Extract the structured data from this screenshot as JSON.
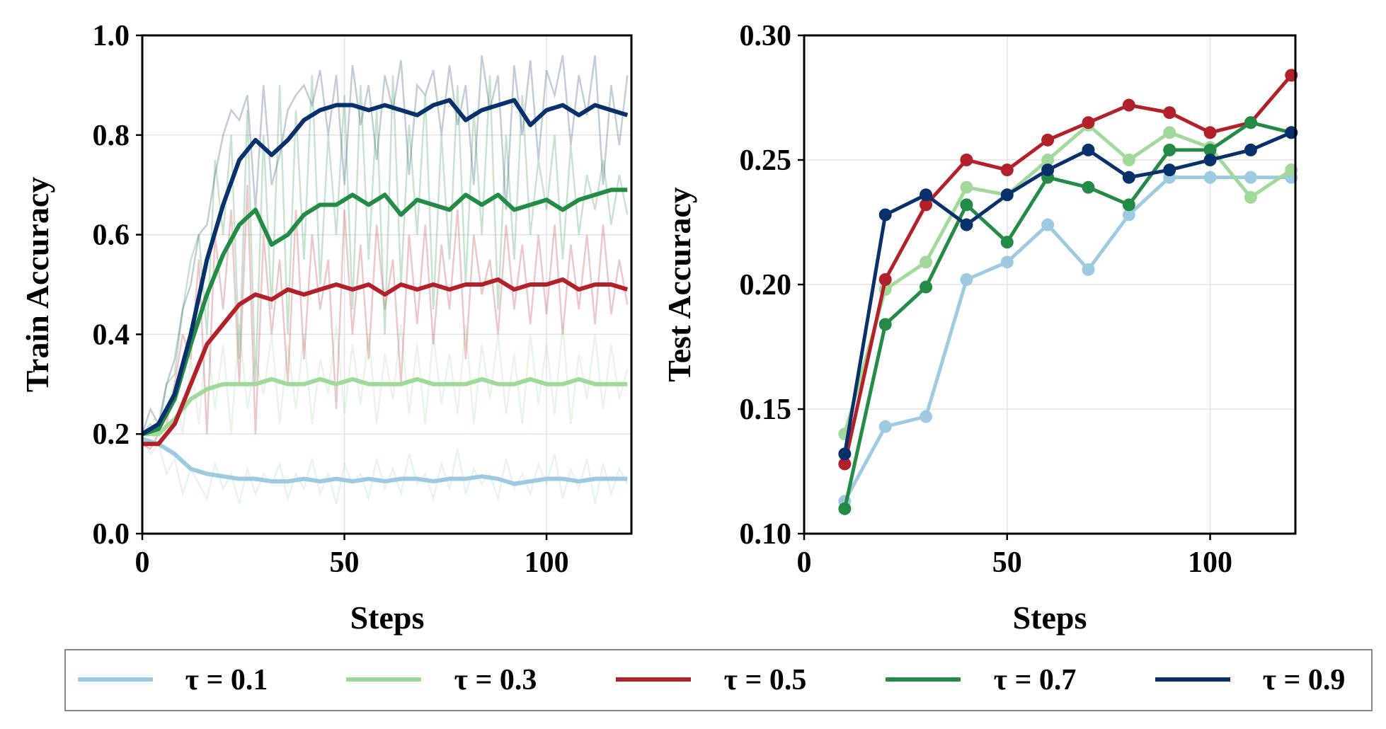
{
  "chart_data": [
    {
      "type": "line",
      "xlabel": "Steps",
      "ylabel": "Train Accuracy",
      "xlim": [
        0,
        121
      ],
      "ylim": [
        0.0,
        1.0
      ],
      "xticks": [
        "0",
        "50",
        "100"
      ],
      "yticks": [
        "0.0",
        "0.2",
        "0.4",
        "0.6",
        "0.8",
        "1.0"
      ],
      "grid": true,
      "smoothed_x": [
        0,
        4,
        8,
        12,
        16,
        20,
        24,
        28,
        32,
        36,
        40,
        44,
        48,
        52,
        56,
        60,
        64,
        68,
        72,
        76,
        80,
        84,
        88,
        92,
        96,
        100,
        104,
        108,
        112,
        116,
        120
      ],
      "raw_x_step": 2,
      "series": [
        {
          "name": "τ = 0.1",
          "color": "#9ecae1",
          "smoothed": [
            0.19,
            0.18,
            0.16,
            0.13,
            0.12,
            0.115,
            0.11,
            0.11,
            0.105,
            0.105,
            0.11,
            0.105,
            0.11,
            0.105,
            0.11,
            0.105,
            0.11,
            0.11,
            0.105,
            0.11,
            0.11,
            0.115,
            0.11,
            0.1,
            0.105,
            0.11,
            0.11,
            0.105,
            0.11,
            0.11,
            0.11
          ],
          "raw": [
            0.19,
            0.16,
            0.18,
            0.12,
            0.15,
            0.08,
            0.13,
            0.1,
            0.07,
            0.14,
            0.09,
            0.12,
            0.06,
            0.13,
            0.08,
            0.12,
            0.1,
            0.14,
            0.07,
            0.12,
            0.09,
            0.15,
            0.08,
            0.12,
            0.06,
            0.14,
            0.1,
            0.12,
            0.07,
            0.15,
            0.09,
            0.13,
            0.08,
            0.16,
            0.1,
            0.12,
            0.07,
            0.14,
            0.09,
            0.17,
            0.08,
            0.13,
            0.1,
            0.12,
            0.07,
            0.15,
            0.09,
            0.12,
            0.08,
            0.14,
            0.1,
            0.16,
            0.07,
            0.13,
            0.09,
            0.15,
            0.06,
            0.14,
            0.08,
            0.13,
            0.1
          ]
        },
        {
          "name": "τ = 0.3",
          "color": "#a1d99b",
          "smoothed": [
            0.2,
            0.2,
            0.23,
            0.27,
            0.29,
            0.3,
            0.3,
            0.3,
            0.31,
            0.3,
            0.3,
            0.31,
            0.3,
            0.31,
            0.3,
            0.3,
            0.3,
            0.31,
            0.3,
            0.3,
            0.3,
            0.31,
            0.3,
            0.3,
            0.31,
            0.3,
            0.3,
            0.31,
            0.3,
            0.3,
            0.3
          ],
          "raw": [
            0.2,
            0.21,
            0.18,
            0.25,
            0.3,
            0.2,
            0.35,
            0.22,
            0.4,
            0.25,
            0.38,
            0.2,
            0.42,
            0.25,
            0.35,
            0.28,
            0.4,
            0.22,
            0.38,
            0.25,
            0.4,
            0.22,
            0.35,
            0.28,
            0.42,
            0.24,
            0.38,
            0.26,
            0.4,
            0.22,
            0.36,
            0.27,
            0.42,
            0.24,
            0.38,
            0.22,
            0.4,
            0.26,
            0.36,
            0.24,
            0.42,
            0.22,
            0.38,
            0.27,
            0.4,
            0.24,
            0.36,
            0.22,
            0.4,
            0.26,
            0.38,
            0.24,
            0.42,
            0.22,
            0.36,
            0.27,
            0.4,
            0.25,
            0.38,
            0.27,
            0.33
          ]
        },
        {
          "name": "τ = 0.5",
          "color": "#b2202a",
          "smoothed": [
            0.18,
            0.18,
            0.22,
            0.3,
            0.38,
            0.42,
            0.46,
            0.48,
            0.47,
            0.49,
            0.48,
            0.49,
            0.5,
            0.49,
            0.5,
            0.48,
            0.5,
            0.49,
            0.5,
            0.49,
            0.5,
            0.5,
            0.51,
            0.49,
            0.5,
            0.5,
            0.51,
            0.49,
            0.5,
            0.5,
            0.49
          ],
          "raw": [
            0.18,
            0.17,
            0.2,
            0.22,
            0.3,
            0.4,
            0.35,
            0.55,
            0.2,
            0.6,
            0.45,
            0.65,
            0.3,
            0.7,
            0.2,
            0.6,
            0.4,
            0.55,
            0.3,
            0.65,
            0.35,
            0.6,
            0.45,
            0.55,
            0.25,
            0.65,
            0.4,
            0.58,
            0.35,
            0.62,
            0.45,
            0.55,
            0.3,
            0.6,
            0.42,
            0.62,
            0.38,
            0.58,
            0.45,
            0.65,
            0.35,
            0.6,
            0.48,
            0.55,
            0.4,
            0.62,
            0.45,
            0.58,
            0.42,
            0.6,
            0.44,
            0.62,
            0.4,
            0.58,
            0.45,
            0.6,
            0.42,
            0.62,
            0.44,
            0.55,
            0.46
          ]
        },
        {
          "name": "τ = 0.7",
          "color": "#238b45",
          "smoothed": [
            0.2,
            0.21,
            0.27,
            0.38,
            0.48,
            0.56,
            0.62,
            0.65,
            0.58,
            0.6,
            0.64,
            0.66,
            0.66,
            0.68,
            0.66,
            0.68,
            0.64,
            0.67,
            0.66,
            0.65,
            0.68,
            0.66,
            0.68,
            0.65,
            0.66,
            0.67,
            0.65,
            0.67,
            0.68,
            0.69,
            0.69
          ],
          "raw": [
            0.2,
            0.22,
            0.2,
            0.3,
            0.32,
            0.45,
            0.55,
            0.6,
            0.4,
            0.75,
            0.6,
            0.8,
            0.35,
            0.85,
            0.3,
            0.8,
            0.45,
            0.9,
            0.4,
            0.85,
            0.55,
            0.92,
            0.5,
            0.8,
            0.6,
            0.88,
            0.45,
            0.9,
            0.55,
            0.85,
            0.4,
            0.92,
            0.5,
            0.82,
            0.6,
            0.88,
            0.45,
            0.8,
            0.55,
            0.9,
            0.5,
            0.85,
            0.6,
            0.92,
            0.45,
            0.8,
            0.55,
            0.88,
            0.6,
            0.75,
            0.65,
            0.8,
            0.55,
            0.78,
            0.6,
            0.72,
            0.65,
            0.75,
            0.62,
            0.72,
            0.64
          ]
        },
        {
          "name": "τ = 0.9",
          "color": "#08306b",
          "smoothed": [
            0.2,
            0.22,
            0.28,
            0.4,
            0.55,
            0.66,
            0.75,
            0.79,
            0.76,
            0.79,
            0.83,
            0.85,
            0.86,
            0.86,
            0.85,
            0.86,
            0.85,
            0.84,
            0.86,
            0.87,
            0.83,
            0.85,
            0.86,
            0.87,
            0.82,
            0.85,
            0.86,
            0.84,
            0.86,
            0.85,
            0.84
          ],
          "raw": [
            0.2,
            0.25,
            0.22,
            0.3,
            0.35,
            0.45,
            0.5,
            0.6,
            0.62,
            0.72,
            0.8,
            0.85,
            0.83,
            0.88,
            0.65,
            0.9,
            0.7,
            0.76,
            0.85,
            0.88,
            0.9,
            0.86,
            0.93,
            0.8,
            0.92,
            0.7,
            0.94,
            0.82,
            0.9,
            0.75,
            0.92,
            0.85,
            0.95,
            0.72,
            0.9,
            0.88,
            0.93,
            0.8,
            0.94,
            0.82,
            0.9,
            0.7,
            0.96,
            0.85,
            0.92,
            0.65,
            0.94,
            0.8,
            0.95,
            0.75,
            0.93,
            0.88,
            0.96,
            0.78,
            0.92,
            0.84,
            0.96,
            0.7,
            0.9,
            0.78,
            0.92
          ]
        }
      ]
    },
    {
      "type": "line",
      "xlabel": "Steps",
      "ylabel": "Test Accuracy",
      "xlim": [
        0,
        121
      ],
      "ylim": [
        0.1,
        0.3
      ],
      "xticks": [
        "0",
        "50",
        "100"
      ],
      "yticks": [
        "0.10",
        "0.15",
        "0.20",
        "0.25",
        "0.30"
      ],
      "grid": true,
      "markers": true,
      "x": [
        10,
        20,
        30,
        40,
        50,
        60,
        70,
        80,
        90,
        100,
        110,
        120
      ],
      "series": [
        {
          "name": "τ = 0.1",
          "color": "#9ecae1",
          "values": [
            0.113,
            0.143,
            0.147,
            0.202,
            0.209,
            0.224,
            0.206,
            0.228,
            0.243,
            0.243,
            0.243,
            0.243
          ]
        },
        {
          "name": "τ = 0.3",
          "color": "#a1d99b",
          "values": [
            0.14,
            0.198,
            0.209,
            0.239,
            0.236,
            0.25,
            0.264,
            0.25,
            0.261,
            0.255,
            0.235,
            0.246
          ]
        },
        {
          "name": "τ = 0.5",
          "color": "#b2202a",
          "values": [
            0.128,
            0.202,
            0.232,
            0.25,
            0.246,
            0.258,
            0.265,
            0.272,
            0.269,
            0.261,
            0.265,
            0.284
          ]
        },
        {
          "name": "τ = 0.7",
          "color": "#238b45",
          "values": [
            0.11,
            0.184,
            0.199,
            0.232,
            0.217,
            0.243,
            0.239,
            0.232,
            0.254,
            0.254,
            0.265,
            0.261
          ]
        },
        {
          "name": "τ = 0.9",
          "color": "#08306b",
          "values": [
            0.132,
            0.228,
            0.236,
            0.224,
            0.236,
            0.246,
            0.254,
            0.243,
            0.246,
            0.25,
            0.254,
            0.261
          ]
        }
      ]
    }
  ],
  "legend": {
    "placement": "bottom",
    "entries": [
      "τ = 0.1",
      "τ = 0.3",
      "τ = 0.5",
      "τ = 0.7",
      "τ = 0.9"
    ]
  }
}
